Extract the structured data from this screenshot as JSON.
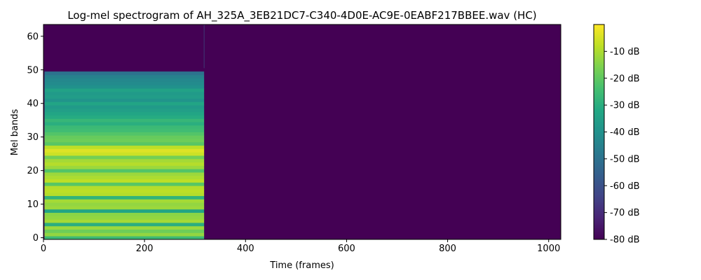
{
  "chart_data": {
    "type": "heatmap",
    "title": "Log-mel spectrogram of AH_325A_3EB21DC7-C340-4D0E-AC9E-0EABF217BBEE.wav (HC)",
    "xlabel": "Time (frames)",
    "ylabel": "Mel bands",
    "xlim": [
      0,
      1024
    ],
    "ylim": [
      -0.5,
      63.5
    ],
    "x_ticks": [
      0,
      200,
      400,
      600,
      800,
      1000
    ],
    "y_ticks": [
      0,
      10,
      20,
      30,
      40,
      50,
      60
    ],
    "grid": false,
    "colormap": "viridis",
    "colorbar": {
      "range": [
        -80,
        0
      ],
      "ticks": [
        -10,
        -20,
        -30,
        -40,
        -50,
        -60,
        -70,
        -80
      ],
      "tick_labels": [
        "-10 dB",
        "-20 dB",
        "-30 dB",
        "-40 dB",
        "-50 dB",
        "-60 dB",
        "-70 dB",
        "-80 dB"
      ]
    },
    "signal": {
      "start_frame": 2,
      "end_frame": 318,
      "top_mel_band": 50,
      "floor_db": -80
    },
    "band_levels_db": [
      -26,
      -13,
      -18,
      -12,
      -30,
      -11,
      -13,
      -14,
      -33,
      -12,
      -13,
      -11,
      -28,
      -9,
      -8,
      -9,
      -21,
      -8,
      -10,
      -12,
      -22,
      -12,
      -9,
      -11,
      -17,
      -6,
      -4,
      -8,
      -21,
      -18,
      -19,
      -22,
      -25,
      -26,
      -30,
      -27,
      -31,
      -33,
      -35,
      -37,
      -33,
      -39,
      -36,
      -37,
      -34,
      -40,
      -42,
      -43,
      -45,
      -50
    ]
  }
}
